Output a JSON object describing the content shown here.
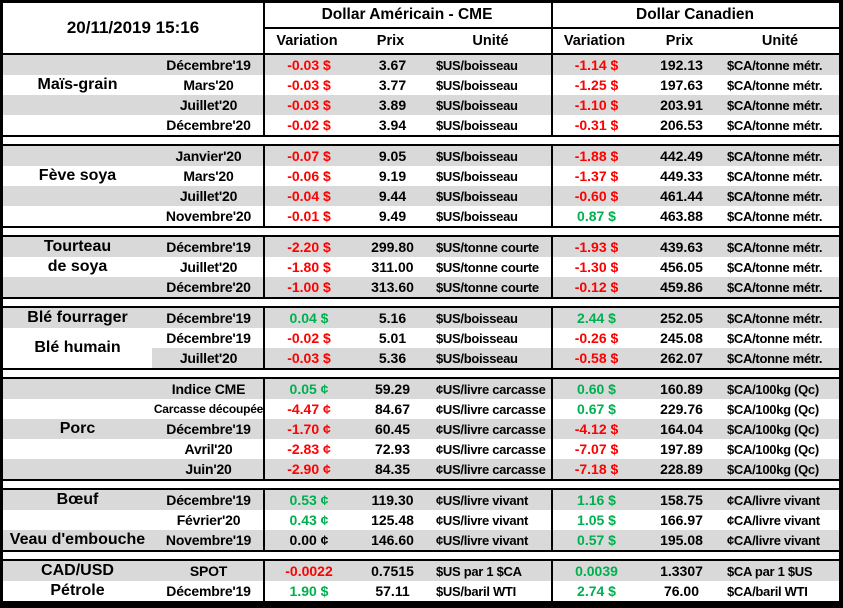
{
  "header": {
    "timestamp": "20/11/2019 15:16",
    "us_section": "Dollar Américain - CME",
    "ca_section": "Dollar Canadien",
    "columns": {
      "variation": "Variation",
      "prix": "Prix",
      "unite": "Unité"
    }
  },
  "colors": {
    "negative": "#FF0000",
    "positive": "#00B050",
    "neutral": "#000000",
    "stripe": "#D9D9D9",
    "border": "#000000"
  },
  "groups": [
    {
      "id": "mais-grain",
      "labels": [
        {
          "text": "Maïs-grain",
          "row": 2,
          "span": 1
        }
      ],
      "rows": [
        {
          "contract": "Décembre'19",
          "us_var": "-0.03 $",
          "us_t": "n",
          "us_prix": "3.67",
          "us_unit": "$US/boisseau",
          "ca_var": "-1.14 $",
          "ca_t": "n",
          "ca_prix": "192.13",
          "ca_unit": "$CA/tonne métr."
        },
        {
          "contract": "Mars'20",
          "us_var": "-0.03 $",
          "us_t": "n",
          "us_prix": "3.77",
          "us_unit": "$US/boisseau",
          "ca_var": "-1.25 $",
          "ca_t": "n",
          "ca_prix": "197.63",
          "ca_unit": "$CA/tonne métr."
        },
        {
          "contract": "Juillet'20",
          "us_var": "-0.03 $",
          "us_t": "n",
          "us_prix": "3.89",
          "us_unit": "$US/boisseau",
          "ca_var": "-1.10 $",
          "ca_t": "n",
          "ca_prix": "203.91",
          "ca_unit": "$CA/tonne métr."
        },
        {
          "contract": "Décembre'20",
          "us_var": "-0.02 $",
          "us_t": "n",
          "us_prix": "3.94",
          "us_unit": "$US/boisseau",
          "ca_var": "-0.31 $",
          "ca_t": "n",
          "ca_prix": "206.53",
          "ca_unit": "$CA/tonne métr."
        }
      ]
    },
    {
      "id": "feve-soya",
      "labels": [
        {
          "text": "Fève soya",
          "row": 2,
          "span": 1
        }
      ],
      "rows": [
        {
          "contract": "Janvier'20",
          "us_var": "-0.07 $",
          "us_t": "n",
          "us_prix": "9.05",
          "us_unit": "$US/boisseau",
          "ca_var": "-1.88 $",
          "ca_t": "n",
          "ca_prix": "442.49",
          "ca_unit": "$CA/tonne métr."
        },
        {
          "contract": "Mars'20",
          "us_var": "-0.06 $",
          "us_t": "n",
          "us_prix": "9.19",
          "us_unit": "$US/boisseau",
          "ca_var": "-1.37 $",
          "ca_t": "n",
          "ca_prix": "449.33",
          "ca_unit": "$CA/tonne métr."
        },
        {
          "contract": "Juillet'20",
          "us_var": "-0.04 $",
          "us_t": "n",
          "us_prix": "9.44",
          "us_unit": "$US/boisseau",
          "ca_var": "-0.60 $",
          "ca_t": "n",
          "ca_prix": "461.44",
          "ca_unit": "$CA/tonne métr."
        },
        {
          "contract": "Novembre'20",
          "us_var": "-0.01 $",
          "us_t": "n",
          "us_prix": "9.49",
          "us_unit": "$US/boisseau",
          "ca_var": "0.87 $",
          "ca_t": "p",
          "ca_prix": "463.88",
          "ca_unit": "$CA/tonne métr."
        }
      ]
    },
    {
      "id": "tourteau-de-soya",
      "labels": [
        {
          "text": "Tourteau",
          "row": 1,
          "span": 1
        },
        {
          "text": "de soya",
          "row": 2,
          "span": 1
        }
      ],
      "rows": [
        {
          "contract": "Décembre'19",
          "us_var": "-2.20 $",
          "us_t": "n",
          "us_prix": "299.80",
          "us_unit": "$US/tonne courte",
          "ca_var": "-1.93 $",
          "ca_t": "n",
          "ca_prix": "439.63",
          "ca_unit": "$CA/tonne métr."
        },
        {
          "contract": "Juillet'20",
          "us_var": "-1.80 $",
          "us_t": "n",
          "us_prix": "311.00",
          "us_unit": "$US/tonne courte",
          "ca_var": "-1.30 $",
          "ca_t": "n",
          "ca_prix": "456.05",
          "ca_unit": "$CA/tonne métr."
        },
        {
          "contract": "Décembre'20",
          "us_var": "-1.00 $",
          "us_t": "n",
          "us_prix": "313.60",
          "us_unit": "$US/tonne courte",
          "ca_var": "-0.12 $",
          "ca_t": "n",
          "ca_prix": "459.86",
          "ca_unit": "$CA/tonne métr."
        }
      ]
    },
    {
      "id": "ble",
      "labels": [
        {
          "text": "Blé fourrager",
          "row": 1,
          "span": 1
        },
        {
          "text": "Blé humain",
          "row": 2,
          "span": 2,
          "bg": "white"
        }
      ],
      "rows": [
        {
          "contract": "Décembre'19",
          "us_var": "0.04 $",
          "us_t": "p",
          "us_prix": "5.16",
          "us_unit": "$US/boisseau",
          "ca_var": "2.44 $",
          "ca_t": "p",
          "ca_prix": "252.05",
          "ca_unit": "$CA/tonne métr."
        },
        {
          "contract": "Décembre'19",
          "us_var": "-0.02 $",
          "us_t": "n",
          "us_prix": "5.01",
          "us_unit": "$US/boisseau",
          "ca_var": "-0.26 $",
          "ca_t": "n",
          "ca_prix": "245.08",
          "ca_unit": "$CA/tonne métr."
        },
        {
          "contract": "Juillet'20",
          "us_var": "-0.03 $",
          "us_t": "n",
          "us_prix": "5.36",
          "us_unit": "$US/boisseau",
          "ca_var": "-0.58 $",
          "ca_t": "n",
          "ca_prix": "262.07",
          "ca_unit": "$CA/tonne métr."
        }
      ]
    },
    {
      "id": "porc",
      "labels": [
        {
          "text": "Porc",
          "row": 1,
          "span": 5
        }
      ],
      "rows": [
        {
          "contract": "Indice CME",
          "us_var": "0.05 ¢",
          "us_t": "p",
          "us_prix": "59.29",
          "us_unit": "¢US/livre carcasse",
          "ca_var": "0.60 $",
          "ca_t": "p",
          "ca_prix": "160.89",
          "ca_unit": "$CA/100kg (Qc)"
        },
        {
          "contract": "Carcasse découpée",
          "small": true,
          "us_var": "-4.47 ¢",
          "us_t": "n",
          "us_prix": "84.67",
          "us_unit": "¢US/livre carcasse",
          "ca_var": "0.67 $",
          "ca_t": "p",
          "ca_prix": "229.76",
          "ca_unit": "$CA/100kg (Qc)"
        },
        {
          "contract": "Décembre'19",
          "us_var": "-1.70 ¢",
          "us_t": "n",
          "us_prix": "60.45",
          "us_unit": "¢US/livre carcasse",
          "ca_var": "-4.12 $",
          "ca_t": "n",
          "ca_prix": "164.04",
          "ca_unit": "$CA/100kg (Qc)"
        },
        {
          "contract": "Avril'20",
          "us_var": "-2.83 ¢",
          "us_t": "n",
          "us_prix": "72.93",
          "us_unit": "¢US/livre carcasse",
          "ca_var": "-7.07 $",
          "ca_t": "n",
          "ca_prix": "197.89",
          "ca_unit": "$CA/100kg (Qc)"
        },
        {
          "contract": "Juin'20",
          "us_var": "-2.90 ¢",
          "us_t": "n",
          "us_prix": "84.35",
          "us_unit": "¢US/livre carcasse",
          "ca_var": "-7.18 $",
          "ca_t": "n",
          "ca_prix": "228.89",
          "ca_unit": "$CA/100kg (Qc)"
        }
      ]
    },
    {
      "id": "boeuf-veau",
      "labels": [
        {
          "text": "Bœuf",
          "row": 1,
          "span": 1
        },
        {
          "text": "Veau d'embouche",
          "row": 3,
          "span": 1
        }
      ],
      "rows": [
        {
          "contract": "Décembre'19",
          "us_var": "0.53 ¢",
          "us_t": "p",
          "us_prix": "119.30",
          "us_unit": "¢US/livre vivant",
          "ca_var": "1.16 $",
          "ca_t": "p",
          "ca_prix": "158.75",
          "ca_unit": "¢CA/livre vivant"
        },
        {
          "contract": "Février'20",
          "us_var": "0.43 ¢",
          "us_t": "p",
          "us_prix": "125.48",
          "us_unit": "¢US/livre vivant",
          "ca_var": "1.05 $",
          "ca_t": "p",
          "ca_prix": "166.97",
          "ca_unit": "¢CA/livre vivant"
        },
        {
          "contract": "Novembre'19",
          "us_var": "0.00 ¢",
          "us_t": "z",
          "us_prix": "146.60",
          "us_unit": "¢US/livre vivant",
          "ca_var": "0.57 $",
          "ca_t": "p",
          "ca_prix": "195.08",
          "ca_unit": "¢CA/livre vivant"
        }
      ]
    },
    {
      "id": "cadusd-petrole",
      "labels": [
        {
          "text": "CAD/USD",
          "row": 1,
          "span": 1
        },
        {
          "text": "Pétrole",
          "row": 2,
          "span": 1
        }
      ],
      "rows": [
        {
          "contract": "SPOT",
          "us_var": "-0.0022",
          "us_t": "n",
          "us_prix": "0.7515",
          "us_unit": "$US par 1 $CA",
          "ca_var": "0.0039",
          "ca_t": "p",
          "ca_prix": "1.3307",
          "ca_unit": "$CA par 1 $US"
        },
        {
          "contract": "Décembre'19",
          "us_var": "1.90 $",
          "us_t": "p",
          "us_prix": "57.11",
          "us_unit": "$US/baril WTI",
          "ca_var": "2.74 $",
          "ca_t": "p",
          "ca_prix": "76.00",
          "ca_unit": "$CA/baril WTI"
        }
      ]
    }
  ]
}
